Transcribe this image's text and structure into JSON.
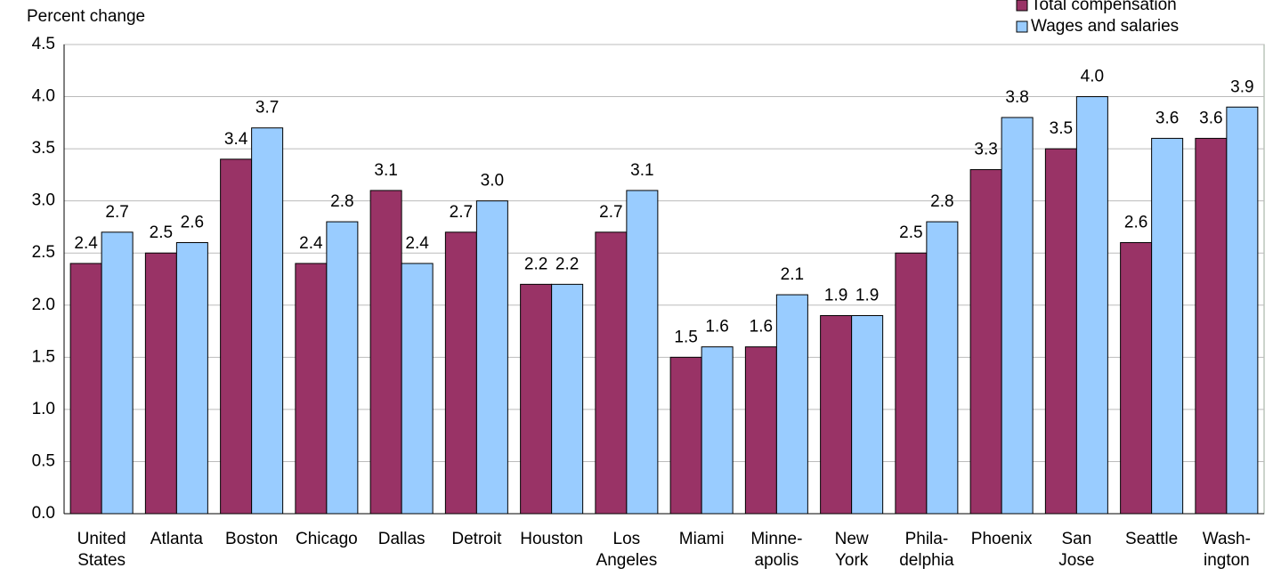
{
  "chart_data": {
    "type": "bar",
    "y_label": "Percent change",
    "categories": [
      "United\nStates",
      "Atlanta",
      "Boston",
      "Chicago",
      "Dallas",
      "Detroit",
      "Houston",
      "Los\nAngeles",
      "Miami",
      "Minne-\napolis",
      "New\nYork",
      "Phila-\ndelphia",
      "Phoenix",
      "San\nJose",
      "Seattle",
      "Wash-\nington"
    ],
    "series": [
      {
        "name": "Total compensation",
        "color": "#993366",
        "values": [
          2.4,
          2.5,
          3.4,
          2.4,
          3.1,
          2.7,
          2.2,
          2.7,
          1.5,
          1.6,
          1.9,
          2.5,
          3.3,
          3.5,
          2.6,
          3.6
        ],
        "value_labels": [
          "2.4",
          "2.5",
          "3.4",
          "2.4",
          "3.1",
          "2.7",
          "2.2",
          "2.7",
          "1.5",
          "1.6",
          "1.9",
          "2.5",
          "3.3",
          "3.5",
          "2.6",
          "3.6"
        ]
      },
      {
        "name": "Wages and salaries",
        "color": "#99ccff",
        "values": [
          2.7,
          2.6,
          3.7,
          2.8,
          2.4,
          3.0,
          2.2,
          3.1,
          1.6,
          2.1,
          1.9,
          2.8,
          3.8,
          4.0,
          3.6,
          3.9
        ],
        "value_labels": [
          "2.7",
          "2.6",
          "3.7",
          "2.8",
          "2.4",
          "3.0",
          "2.2",
          "3.1",
          "1.6",
          "2.1",
          "1.9",
          "2.8",
          "3.8",
          "4.0",
          "3.6",
          "3.9"
        ]
      }
    ],
    "ylim": [
      0,
      4.5
    ],
    "yticks": [
      {
        "value": 0,
        "label": "0.0"
      },
      0.5,
      {
        "value": 1,
        "label": "1.0"
      },
      1.5,
      {
        "value": 2,
        "label": "2.0"
      },
      2.5,
      {
        "value": 3,
        "label": "3.0"
      },
      3.5,
      {
        "value": 4,
        "label": "4.0"
      },
      4.5
    ],
    "grid": true
  }
}
